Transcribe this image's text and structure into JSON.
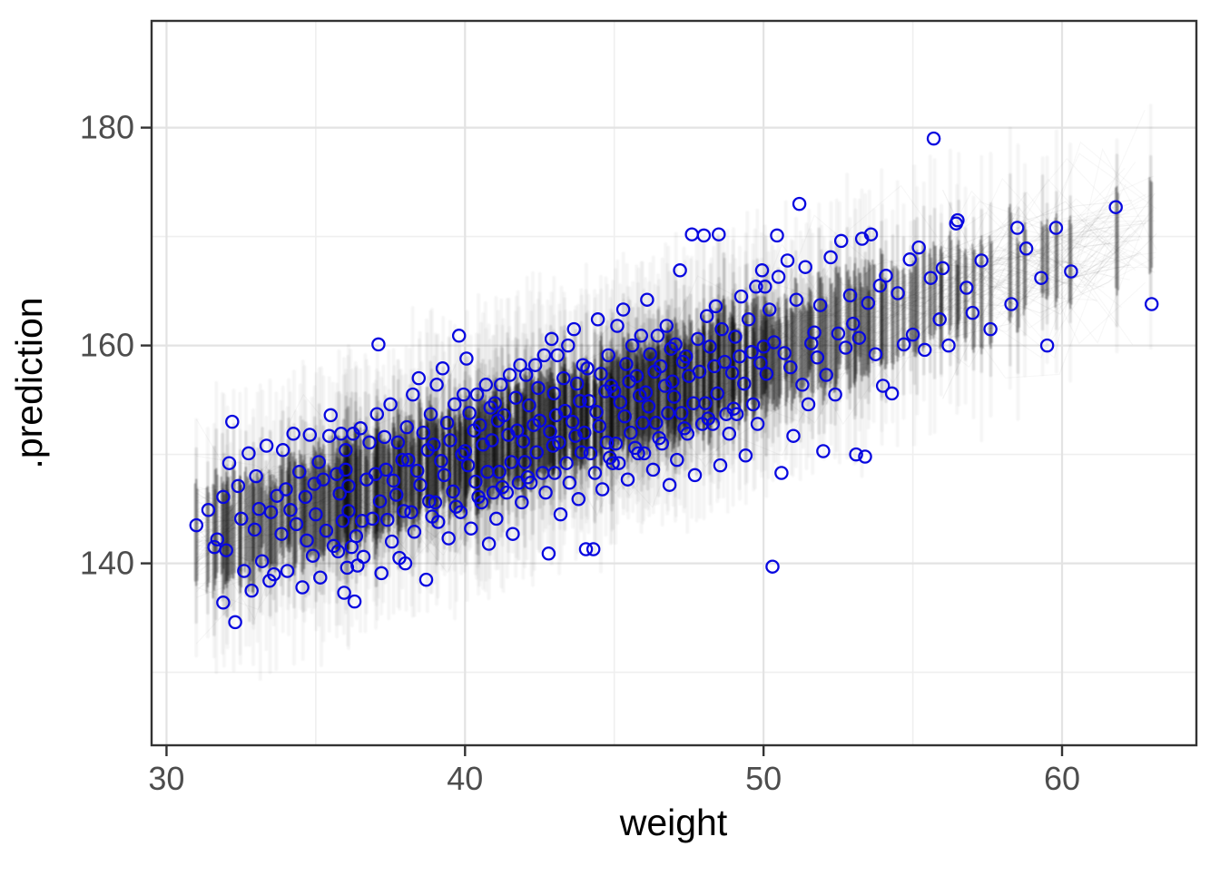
{
  "chart_data": {
    "type": "scatter",
    "title": "",
    "xlabel": "weight",
    "ylabel": ".prediction",
    "xlim": [
      29.5,
      64.5
    ],
    "ylim": [
      123.3,
      189.8
    ],
    "x_ticks": [
      30,
      40,
      50,
      60
    ],
    "x_minor_gridlines": [
      35,
      45,
      55
    ],
    "y_ticks": [
      140,
      160,
      180
    ],
    "y_minor_gridlines": [
      130,
      150,
      170
    ],
    "grid": "on",
    "legend": "none",
    "colors": {
      "point_stroke": "#0808e0",
      "cloud": "#000000",
      "grid_major": "#e3e3e3",
      "grid_minor": "#efefef",
      "panel_border": "#333333",
      "tick_mark": "#333333",
      "tick_text": "#4d4d4d",
      "axis_title_text": "#000000",
      "background": "#ffffff"
    },
    "uncertainty_cloud": {
      "kind": "posterior-predictive-draw streaks",
      "x_range": [
        31.0,
        63.2
      ],
      "center_line": {
        "intercept": 114.0,
        "slope": 0.9
      },
      "dense_half_range_units": 5.0,
      "max_half_range_units": 13.5,
      "spaghetti_lines": 70,
      "right_spaghetti_extra": 18,
      "right_spaghetti_from": 56.0
    },
    "points": [
      [
        31.0,
        143.5
      ],
      [
        31.4,
        144.9
      ],
      [
        31.6,
        141.5
      ],
      [
        31.7,
        142.2
      ],
      [
        31.9,
        136.4
      ],
      [
        31.9,
        146.1
      ],
      [
        32.0,
        141.2
      ],
      [
        32.1,
        149.2
      ],
      [
        32.2,
        153.0
      ],
      [
        32.3,
        134.6
      ],
      [
        32.4,
        147.1
      ],
      [
        32.5,
        144.1
      ],
      [
        32.6,
        139.3
      ],
      [
        32.75,
        150.1
      ],
      [
        32.85,
        137.5
      ],
      [
        32.95,
        143.1
      ],
      [
        33.0,
        148.0
      ],
      [
        33.1,
        145.0
      ],
      [
        33.2,
        140.2
      ],
      [
        33.35,
        150.8
      ],
      [
        33.45,
        138.4
      ],
      [
        33.5,
        144.7
      ],
      [
        33.6,
        139.0
      ],
      [
        33.7,
        146.2
      ],
      [
        33.85,
        142.7
      ],
      [
        33.9,
        150.4
      ],
      [
        34.0,
        146.8
      ],
      [
        34.05,
        139.3
      ],
      [
        34.15,
        144.9
      ],
      [
        34.25,
        151.9
      ],
      [
        34.35,
        143.6
      ],
      [
        34.45,
        148.4
      ],
      [
        34.55,
        137.8
      ],
      [
        34.65,
        146.1
      ],
      [
        34.7,
        142.1
      ],
      [
        34.8,
        151.8
      ],
      [
        34.9,
        140.7
      ],
      [
        34.95,
        147.3
      ],
      [
        35.0,
        144.5
      ],
      [
        35.1,
        149.3
      ],
      [
        35.15,
        138.7
      ],
      [
        35.25,
        147.7
      ],
      [
        35.35,
        143.0
      ],
      [
        35.45,
        151.7
      ],
      [
        35.5,
        153.6
      ],
      [
        35.6,
        141.6
      ],
      [
        35.7,
        148.2
      ],
      [
        35.75,
        141.1
      ],
      [
        35.8,
        146.4
      ],
      [
        35.85,
        151.9
      ],
      [
        35.9,
        143.9
      ],
      [
        35.95,
        137.3
      ],
      [
        36.0,
        150.4
      ],
      [
        36.0,
        148.6
      ],
      [
        36.05,
        139.6
      ],
      [
        36.1,
        147.1
      ],
      [
        36.1,
        144.8
      ],
      [
        36.2,
        141.5
      ],
      [
        36.25,
        151.9
      ],
      [
        36.3,
        136.5
      ],
      [
        36.35,
        142.5
      ],
      [
        36.4,
        139.8
      ],
      [
        36.5,
        152.4
      ],
      [
        36.55,
        143.9
      ],
      [
        36.6,
        140.6
      ],
      [
        36.7,
        147.7
      ],
      [
        36.8,
        151.1
      ],
      [
        36.9,
        144.1
      ],
      [
        37.0,
        148.2
      ],
      [
        37.05,
        153.7
      ],
      [
        37.1,
        160.1
      ],
      [
        37.15,
        145.7
      ],
      [
        37.2,
        139.1
      ],
      [
        37.3,
        151.6
      ],
      [
        37.35,
        148.6
      ],
      [
        37.4,
        144.0
      ],
      [
        37.5,
        154.6
      ],
      [
        37.55,
        142.0
      ],
      [
        37.6,
        147.6
      ],
      [
        37.7,
        146.3
      ],
      [
        37.75,
        151.1
      ],
      [
        37.8,
        140.5
      ],
      [
        37.9,
        149.5
      ],
      [
        37.95,
        144.8
      ],
      [
        38.0,
        140.0
      ],
      [
        38.05,
        152.5
      ],
      [
        38.1,
        149.5
      ],
      [
        38.2,
        144.7
      ],
      [
        38.25,
        155.5
      ],
      [
        38.3,
        142.9
      ],
      [
        38.4,
        148.5
      ],
      [
        38.45,
        157.0
      ],
      [
        38.5,
        147.2
      ],
      [
        38.6,
        152.0
      ],
      [
        38.7,
        138.5
      ],
      [
        38.75,
        150.4
      ],
      [
        38.8,
        145.7
      ],
      [
        38.85,
        153.7
      ],
      [
        38.9,
        144.3
      ],
      [
        38.95,
        150.9
      ],
      [
        39.0,
        145.6
      ],
      [
        39.05,
        156.4
      ],
      [
        39.1,
        143.8
      ],
      [
        39.2,
        149.4
      ],
      [
        39.25,
        157.9
      ],
      [
        39.3,
        148.1
      ],
      [
        39.4,
        152.9
      ],
      [
        39.45,
        142.3
      ],
      [
        39.5,
        151.3
      ],
      [
        39.6,
        146.6
      ],
      [
        39.65,
        154.6
      ],
      [
        39.7,
        145.2
      ],
      [
        39.8,
        160.9
      ],
      [
        39.85,
        144.7
      ],
      [
        39.9,
        150.0
      ],
      [
        39.95,
        155.5
      ],
      [
        40.0,
        150.3
      ],
      [
        40.05,
        158.8
      ],
      [
        40.1,
        149.0
      ],
      [
        40.15,
        153.8
      ],
      [
        40.2,
        143.2
      ],
      [
        40.3,
        152.2
      ],
      [
        40.35,
        147.5
      ],
      [
        40.4,
        155.5
      ],
      [
        40.45,
        146.1
      ],
      [
        40.5,
        152.7
      ],
      [
        40.55,
        145.6
      ],
      [
        40.6,
        150.9
      ],
      [
        40.7,
        156.4
      ],
      [
        40.75,
        148.4
      ],
      [
        40.8,
        141.8
      ],
      [
        40.85,
        154.3
      ],
      [
        40.9,
        151.3
      ],
      [
        40.95,
        146.5
      ],
      [
        41.0,
        154.7
      ],
      [
        41.05,
        144.1
      ],
      [
        41.1,
        153.1
      ],
      [
        41.15,
        148.4
      ],
      [
        41.2,
        156.4
      ],
      [
        41.25,
        147.0
      ],
      [
        41.3,
        153.6
      ],
      [
        41.4,
        146.5
      ],
      [
        41.45,
        151.8
      ],
      [
        41.5,
        157.3
      ],
      [
        41.55,
        149.3
      ],
      [
        41.6,
        142.7
      ],
      [
        41.7,
        155.2
      ],
      [
        41.75,
        152.2
      ],
      [
        41.8,
        147.4
      ],
      [
        41.85,
        158.2
      ],
      [
        41.9,
        145.6
      ],
      [
        41.95,
        151.2
      ],
      [
        42.0,
        149.3
      ],
      [
        42.05,
        157.3
      ],
      [
        42.1,
        147.9
      ],
      [
        42.15,
        154.5
      ],
      [
        42.2,
        147.4
      ],
      [
        42.3,
        152.7
      ],
      [
        42.35,
        158.2
      ],
      [
        42.4,
        150.2
      ],
      [
        42.45,
        156.1
      ],
      [
        42.5,
        153.1
      ],
      [
        42.6,
        148.3
      ],
      [
        42.65,
        159.1
      ],
      [
        42.7,
        146.5
      ],
      [
        42.8,
        140.9
      ],
      [
        42.85,
        152.1
      ],
      [
        42.9,
        160.6
      ],
      [
        42.95,
        150.8
      ],
      [
        42.98,
        155.6
      ],
      [
        43.0,
        148.3
      ],
      [
        43.05,
        153.6
      ],
      [
        43.1,
        159.1
      ],
      [
        43.15,
        151.1
      ],
      [
        43.2,
        144.5
      ],
      [
        43.3,
        157.0
      ],
      [
        43.35,
        154.0
      ],
      [
        43.4,
        149.2
      ],
      [
        43.45,
        160.0
      ],
      [
        43.5,
        147.4
      ],
      [
        43.6,
        153.0
      ],
      [
        43.65,
        161.5
      ],
      [
        43.7,
        151.7
      ],
      [
        43.75,
        156.5
      ],
      [
        43.8,
        145.9
      ],
      [
        43.85,
        154.9
      ],
      [
        43.9,
        150.2
      ],
      [
        43.95,
        158.2
      ],
      [
        44.0,
        152.0
      ],
      [
        44.05,
        141.3
      ],
      [
        44.1,
        157.9
      ],
      [
        44.15,
        154.9
      ],
      [
        44.2,
        150.1
      ],
      [
        44.3,
        141.3
      ],
      [
        44.35,
        148.3
      ],
      [
        44.4,
        153.9
      ],
      [
        44.45,
        162.4
      ],
      [
        44.5,
        152.6
      ],
      [
        44.55,
        157.4
      ],
      [
        44.6,
        146.8
      ],
      [
        44.7,
        155.8
      ],
      [
        44.75,
        151.1
      ],
      [
        44.8,
        159.1
      ],
      [
        44.85,
        149.7
      ],
      [
        44.9,
        156.3
      ],
      [
        44.95,
        149.2
      ],
      [
        45.0,
        155.8
      ],
      [
        45.05,
        151.0
      ],
      [
        45.1,
        161.8
      ],
      [
        45.15,
        149.2
      ],
      [
        45.2,
        154.8
      ],
      [
        45.3,
        163.3
      ],
      [
        45.35,
        153.5
      ],
      [
        45.4,
        158.3
      ],
      [
        45.45,
        147.7
      ],
      [
        45.5,
        156.7
      ],
      [
        45.55,
        152.0
      ],
      [
        45.6,
        160.0
      ],
      [
        45.7,
        150.6
      ],
      [
        45.75,
        157.2
      ],
      [
        45.8,
        150.1
      ],
      [
        45.85,
        155.4
      ],
      [
        45.9,
        160.9
      ],
      [
        45.95,
        152.9
      ],
      [
        46.0,
        150.1
      ],
      [
        46.05,
        155.7
      ],
      [
        46.1,
        164.2
      ],
      [
        46.15,
        154.4
      ],
      [
        46.2,
        159.2
      ],
      [
        46.3,
        148.6
      ],
      [
        46.35,
        157.6
      ],
      [
        46.4,
        152.9
      ],
      [
        46.45,
        160.9
      ],
      [
        46.5,
        151.5
      ],
      [
        46.55,
        158.1
      ],
      [
        46.6,
        151.0
      ],
      [
        46.7,
        156.3
      ],
      [
        46.75,
        161.8
      ],
      [
        46.8,
        153.8
      ],
      [
        46.85,
        147.2
      ],
      [
        46.9,
        159.7
      ],
      [
        46.95,
        156.7
      ],
      [
        47.0,
        155.3
      ],
      [
        47.05,
        160.1
      ],
      [
        47.1,
        149.5
      ],
      [
        47.2,
        166.9
      ],
      [
        47.25,
        153.8
      ],
      [
        47.3,
        158.5
      ],
      [
        47.35,
        152.4
      ],
      [
        47.4,
        159.0
      ],
      [
        47.45,
        151.9
      ],
      [
        47.5,
        157.2
      ],
      [
        47.6,
        170.2
      ],
      [
        47.65,
        154.7
      ],
      [
        47.7,
        148.1
      ],
      [
        47.8,
        160.6
      ],
      [
        47.85,
        157.6
      ],
      [
        47.95,
        152.8
      ],
      [
        48.0,
        170.1
      ],
      [
        48.05,
        154.7
      ],
      [
        48.1,
        162.7
      ],
      [
        48.15,
        153.3
      ],
      [
        48.2,
        159.9
      ],
      [
        48.3,
        152.8
      ],
      [
        48.35,
        158.1
      ],
      [
        48.4,
        163.6
      ],
      [
        48.45,
        155.6
      ],
      [
        48.5,
        170.2
      ],
      [
        48.55,
        149.0
      ],
      [
        48.6,
        161.5
      ],
      [
        48.7,
        158.5
      ],
      [
        48.75,
        153.7
      ],
      [
        48.85,
        151.9
      ],
      [
        48.95,
        157.5
      ],
      [
        49.0,
        154.2
      ],
      [
        49.05,
        160.8
      ],
      [
        49.1,
        153.7
      ],
      [
        49.2,
        159.0
      ],
      [
        49.25,
        164.5
      ],
      [
        49.35,
        156.5
      ],
      [
        49.4,
        149.9
      ],
      [
        49.5,
        162.4
      ],
      [
        49.6,
        159.4
      ],
      [
        49.65,
        154.6
      ],
      [
        49.75,
        165.4
      ],
      [
        49.8,
        152.8
      ],
      [
        49.9,
        158.4
      ],
      [
        49.95,
        166.9
      ],
      [
        50.0,
        159.9
      ],
      [
        50.05,
        165.4
      ],
      [
        50.1,
        157.4
      ],
      [
        50.2,
        163.3
      ],
      [
        50.3,
        139.7
      ],
      [
        50.35,
        160.3
      ],
      [
        50.45,
        170.1
      ],
      [
        50.5,
        166.3
      ],
      [
        50.6,
        148.3
      ],
      [
        50.7,
        159.3
      ],
      [
        50.8,
        167.8
      ],
      [
        50.9,
        158.0
      ],
      [
        51.0,
        151.7
      ],
      [
        51.1,
        164.2
      ],
      [
        51.2,
        173.0
      ],
      [
        51.3,
        156.4
      ],
      [
        51.4,
        167.2
      ],
      [
        51.5,
        154.6
      ],
      [
        51.6,
        160.2
      ],
      [
        51.7,
        161.2
      ],
      [
        51.8,
        158.9
      ],
      [
        51.9,
        163.7
      ],
      [
        52.0,
        150.3
      ],
      [
        52.1,
        157.3
      ],
      [
        52.25,
        168.1
      ],
      [
        52.4,
        155.5
      ],
      [
        52.5,
        161.1
      ],
      [
        52.6,
        169.6
      ],
      [
        52.75,
        159.8
      ],
      [
        52.9,
        164.6
      ],
      [
        53.0,
        162.0
      ],
      [
        53.1,
        150.0
      ],
      [
        53.2,
        160.7
      ],
      [
        53.3,
        169.8
      ],
      [
        53.4,
        149.8
      ],
      [
        53.5,
        163.9
      ],
      [
        53.6,
        170.2
      ],
      [
        53.75,
        159.2
      ],
      [
        53.9,
        165.5
      ],
      [
        54.0,
        156.3
      ],
      [
        54.1,
        166.4
      ],
      [
        54.3,
        155.6
      ],
      [
        54.5,
        164.8
      ],
      [
        54.7,
        160.1
      ],
      [
        54.9,
        167.9
      ],
      [
        55.0,
        161.0
      ],
      [
        55.2,
        169.0
      ],
      [
        55.4,
        159.6
      ],
      [
        55.6,
        166.2
      ],
      [
        55.7,
        179.0
      ],
      [
        55.9,
        162.4
      ],
      [
        56.0,
        167.1
      ],
      [
        56.2,
        160.0
      ],
      [
        56.45,
        171.2
      ],
      [
        56.5,
        171.5
      ],
      [
        56.8,
        165.3
      ],
      [
        57.0,
        163.0
      ],
      [
        57.3,
        167.8
      ],
      [
        57.6,
        161.5
      ],
      [
        58.3,
        163.8
      ],
      [
        58.5,
        170.8
      ],
      [
        58.8,
        168.9
      ],
      [
        59.3,
        166.2
      ],
      [
        59.5,
        160.0
      ],
      [
        59.8,
        170.8
      ],
      [
        60.3,
        166.8
      ],
      [
        61.8,
        172.7
      ],
      [
        63.0,
        163.8
      ]
    ]
  }
}
